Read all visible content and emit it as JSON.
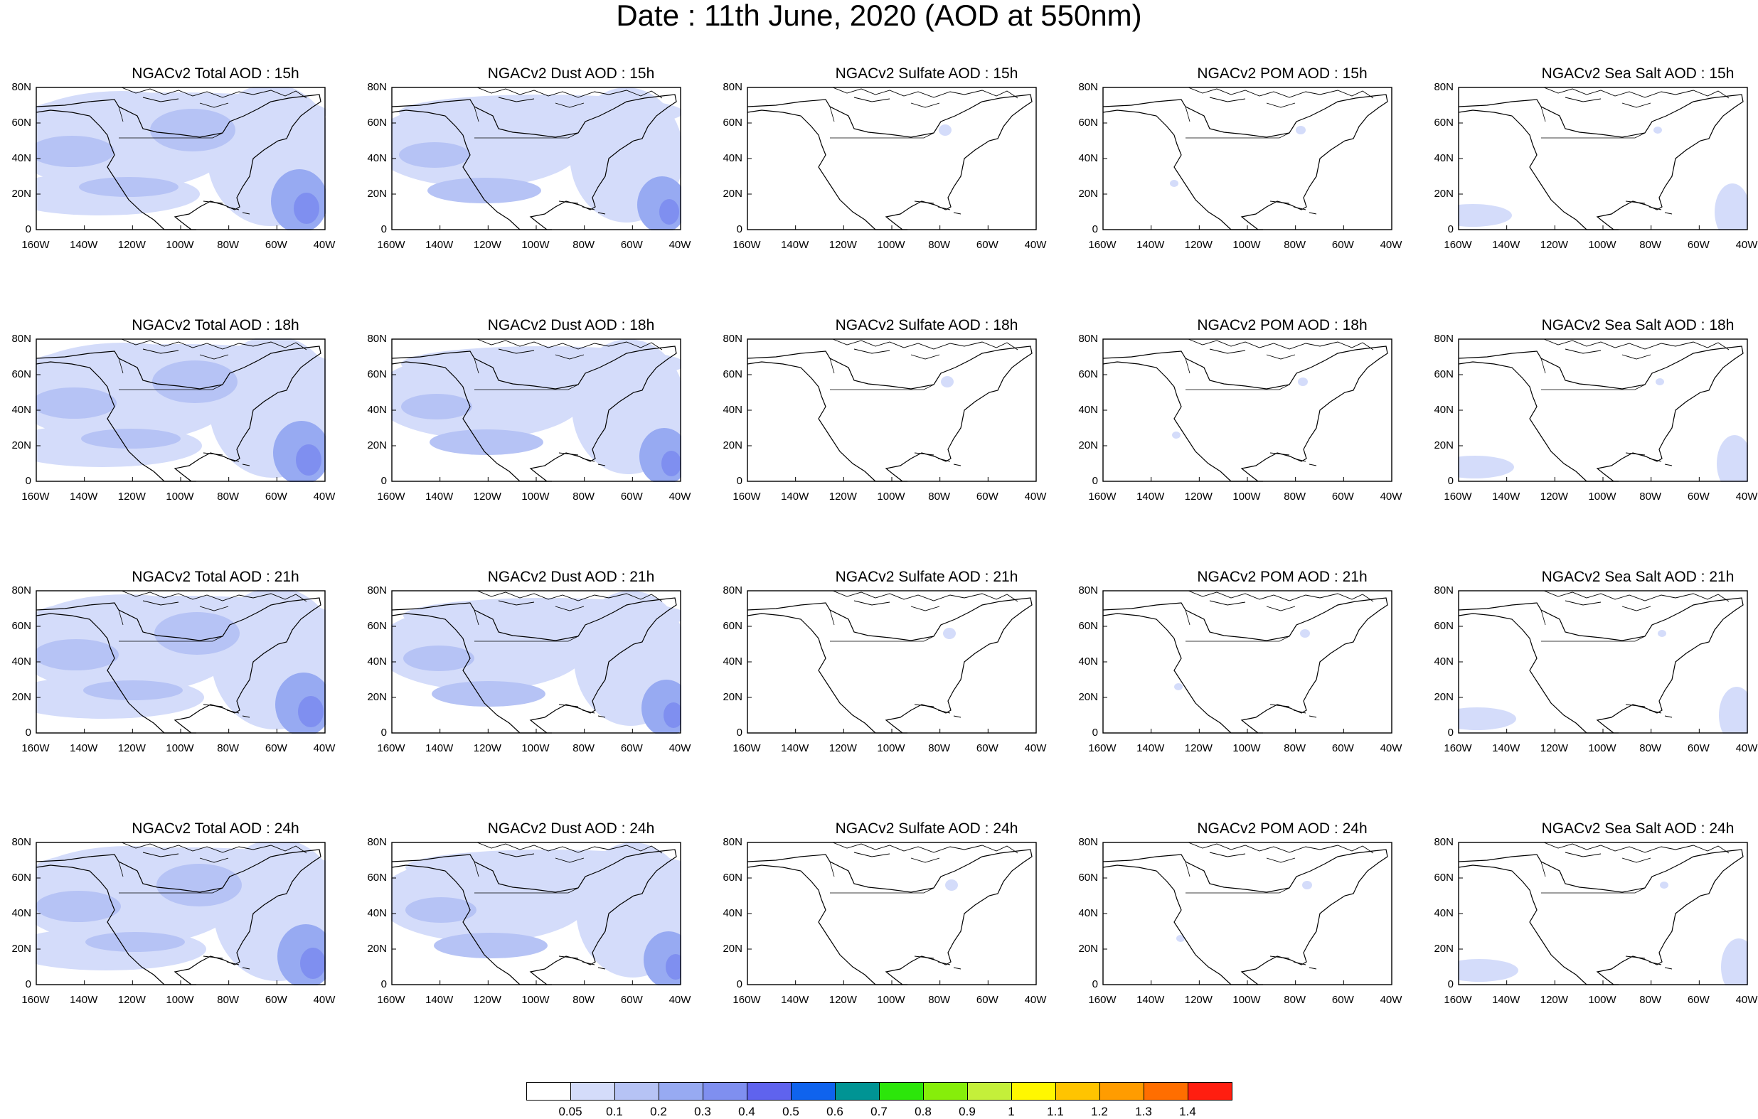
{
  "title": "Date : 11th June, 2020 (AOD at 550nm)",
  "lat_labels": [
    "80N",
    "60N",
    "40N",
    "20N",
    "0"
  ],
  "lon_labels": [
    "160W",
    "140W",
    "120W",
    "100W",
    "80W",
    "60W",
    "40W"
  ],
  "species": [
    {
      "id": "total",
      "titles": [
        "NGACv2 Total AOD : 15h",
        "NGACv2 Total AOD : 18h",
        "NGACv2 Total AOD : 21h",
        "NGACv2 Total AOD : 24h"
      ]
    },
    {
      "id": "dust",
      "titles": [
        "NGACv2 Dust AOD : 15h",
        "NGACv2 Dust AOD : 18h",
        "NGACv2 Dust AOD : 21h",
        "NGACv2 Dust AOD : 24h"
      ]
    },
    {
      "id": "sulfate",
      "titles": [
        "NGACv2 Sulfate AOD : 15h",
        "NGACv2 Sulfate AOD : 18h",
        "NGACv2 Sulfate AOD : 21h",
        "NGACv2 Sulfate AOD : 24h"
      ]
    },
    {
      "id": "pom",
      "titles": [
        "NGACv2 POM AOD : 15h",
        "NGACv2 POM AOD : 18h",
        "NGACv2 POM AOD : 21h",
        "NGACv2 POM AOD : 24h"
      ]
    },
    {
      "id": "seasalt",
      "titles": [
        "NGACv2 Sea Salt AOD : 15h",
        "NGACv2 Sea Salt AOD : 18h",
        "NGACv2 Sea Salt AOD : 21h",
        "NGACv2 Sea Salt  AOD : 24h"
      ]
    }
  ],
  "colorbar": {
    "colors": [
      "#ffffff",
      "#d4dcfa",
      "#b6c3f5",
      "#97aaf2",
      "#7f8ff0",
      "#5f63ee",
      "#0f63ee",
      "#009494",
      "#2ce60a",
      "#86ee0a",
      "#c4f03a",
      "#fff700",
      "#ffc400",
      "#ff9c00",
      "#ff6e00",
      "#ff1e10"
    ],
    "labels": [
      "0.05",
      "0.1",
      "0.2",
      "0.3",
      "0.4",
      "0.5",
      "0.6",
      "0.7",
      "0.8",
      "0.9",
      "1",
      "1.1",
      "1.2",
      "1.3",
      "1.4"
    ]
  }
}
